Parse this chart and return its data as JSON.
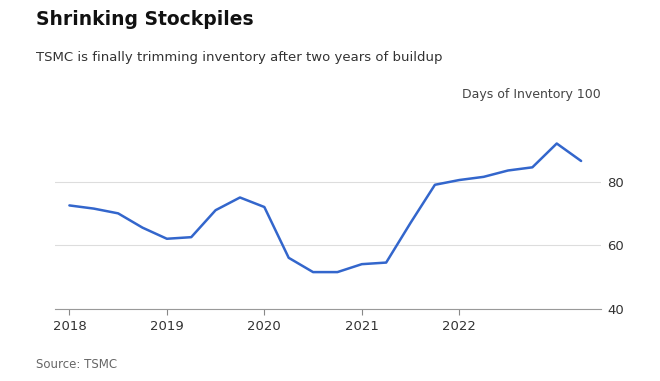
{
  "title": "Shrinking Stockpiles",
  "subtitle": "TSMC is finally trimming inventory after two years of buildup",
  "ylabel": "Days of Inventory 100",
  "source": "Source: TSMC",
  "line_color": "#3366CC",
  "background_color": "#FFFFFF",
  "ylim": [
    40,
    100
  ],
  "yticks": [
    40,
    60,
    80
  ],
  "x": [
    2018.0,
    2018.25,
    2018.5,
    2018.75,
    2019.0,
    2019.25,
    2019.5,
    2019.75,
    2020.0,
    2020.25,
    2020.5,
    2020.75,
    2021.0,
    2021.25,
    2021.5,
    2021.75,
    2022.0,
    2022.25,
    2022.5,
    2022.75,
    2023.0,
    2023.25
  ],
  "y": [
    72.5,
    71.5,
    70.0,
    65.5,
    62.0,
    62.5,
    71.0,
    75.0,
    72.0,
    56.0,
    51.5,
    51.5,
    54.0,
    54.5,
    67.0,
    79.0,
    80.5,
    81.5,
    83.5,
    84.5,
    92.0,
    86.5
  ],
  "xtick_positions": [
    2018,
    2019,
    2020,
    2021,
    2022
  ],
  "xtick_labels": [
    "2018",
    "2019",
    "2020",
    "2021",
    "2022"
  ]
}
